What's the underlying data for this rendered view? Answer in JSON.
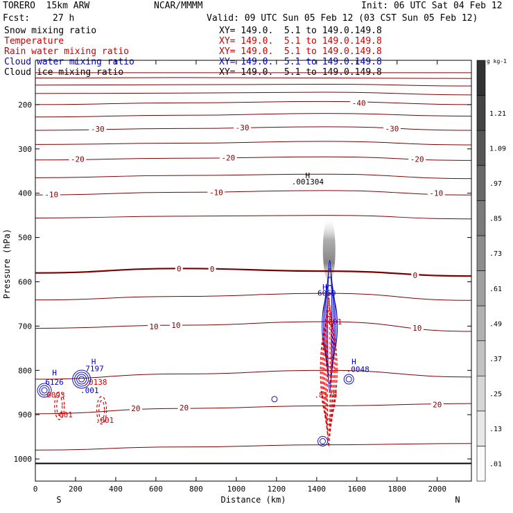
{
  "header": {
    "model": "TORERO  15km ARW",
    "fcst_label": "Fcst:",
    "fcst_value": "27 h",
    "org": "NCAR/MMMM",
    "init": "Init: 06 UTC Sat 04 Feb 12",
    "valid": "Valid: 09 UTC Sun 05 Feb 12 (03 CST Sun 05 Feb 12)"
  },
  "fields": [
    {
      "label": "Snow mixing ratio",
      "xy": "XY= 149.0.  5.1 to 149.0.149.8",
      "color": "#000000"
    },
    {
      "label": "Temperature",
      "xy": "XY= 149.0.  5.1 to 149.0.149.8",
      "color": "#cc0000"
    },
    {
      "label": "Rain water mixing ratio",
      "xy": "XY= 149.0.  5.1 to 149.0.149.8",
      "color": "#cc0000"
    },
    {
      "label": "Cloud water mixing ratio",
      "xy": "XY= 149.0.  5.1 to 149.0.149.8",
      "color": "#0000cc"
    },
    {
      "label": "Cloud ice mixing ratio",
      "xy": "XY= 149.0.  5.1 to 149.0.149.8",
      "color": "#000000"
    }
  ],
  "chart_data": {
    "type": "cross-section contour",
    "xlabel": "Distance (km)",
    "ylabel": "Pressure (hPa)",
    "xlim": [
      0,
      2170
    ],
    "ylim": [
      1050,
      100
    ],
    "x_ticks": [
      0,
      200,
      400,
      600,
      800,
      1000,
      1200,
      1400,
      1600,
      1800,
      2000
    ],
    "y_ticks": [
      200,
      300,
      400,
      500,
      600,
      700,
      800,
      900,
      1000
    ],
    "end_labels": {
      "left": "S",
      "right": "N"
    },
    "isotherms": [
      {
        "T": -60,
        "p": [
          128,
          128,
          128,
          128
        ]
      },
      {
        "T": -55,
        "p": [
          140,
          139,
          140,
          141
        ]
      },
      {
        "T": -50,
        "p": [
          156,
          155,
          154,
          158
        ]
      },
      {
        "T": -45,
        "p": [
          175,
          174,
          172,
          178
        ]
      },
      {
        "T": -40,
        "p": [
          200,
          196,
          193,
          200
        ]
      },
      {
        "T": -35,
        "p": [
          228,
          224,
          220,
          226
        ]
      },
      {
        "T": -30,
        "p": [
          258,
          254,
          250,
          258
        ]
      },
      {
        "T": -25,
        "p": [
          290,
          287,
          283,
          291
        ]
      },
      {
        "T": -20,
        "p": [
          325,
          321,
          318,
          326
        ]
      },
      {
        "T": -15,
        "p": [
          365,
          360,
          357,
          367
        ]
      },
      {
        "T": -10,
        "p": [
          404,
          398,
          394,
          404
        ]
      },
      {
        "T": -5,
        "p": [
          456,
          452,
          450,
          458
        ]
      },
      {
        "T": 0,
        "p": [
          580,
          570,
          576,
          587
        ]
      },
      {
        "T": 5,
        "p": [
          641,
          633,
          626,
          642
        ]
      },
      {
        "T": 10,
        "p": [
          705,
          698,
          690,
          712
        ]
      },
      {
        "T": 15,
        "p": [
          820,
          808,
          800,
          815
        ]
      },
      {
        "T": 20,
        "p": [
          898,
          886,
          880,
          875
        ]
      },
      {
        "T": 25,
        "p": [
          980,
          973,
          968,
          965
        ]
      }
    ],
    "isotherm_labels": [
      {
        "text": "-40",
        "x": 1610,
        "p": 196
      },
      {
        "text": "-30",
        "x": 310,
        "p": 255
      },
      {
        "text": "-30",
        "x": 1030,
        "p": 252
      },
      {
        "text": "-30",
        "x": 1775,
        "p": 254
      },
      {
        "text": "-20",
        "x": 210,
        "p": 323
      },
      {
        "text": "-20",
        "x": 960,
        "p": 320
      },
      {
        "text": "-20",
        "x": 1900,
        "p": 323
      },
      {
        "text": "-10",
        "x": 80,
        "p": 403
      },
      {
        "text": "-10",
        "x": 900,
        "p": 398
      },
      {
        "text": "-10",
        "x": 1995,
        "p": 400
      },
      {
        "text": "0",
        "x": 715,
        "p": 570
      },
      {
        "text": "0",
        "x": 880,
        "p": 571
      },
      {
        "text": "0",
        "x": 1890,
        "p": 585
      },
      {
        "text": "10",
        "x": 590,
        "p": 701
      },
      {
        "text": "10",
        "x": 700,
        "p": 698
      },
      {
        "text": "10",
        "x": 1900,
        "p": 704
      },
      {
        "text": "20",
        "x": 500,
        "p": 886
      },
      {
        "text": "20",
        "x": 740,
        "p": 884
      },
      {
        "text": "20",
        "x": 2000,
        "p": 877
      }
    ],
    "snow_shading": {
      "x": 1462,
      "p_top": 440,
      "p_bottom": 590,
      "legend_ticks": [
        0.01,
        0.13,
        0.25,
        0.37,
        0.49,
        0.61,
        0.73,
        0.85,
        0.97,
        1.09,
        1.21
      ],
      "legend_unit": "g kg-1"
    },
    "cloud_water_contours": [
      {
        "x": 45,
        "p": 845,
        "levels": 3
      },
      {
        "x": 230,
        "p": 820,
        "levels": 4
      },
      {
        "x": 1465,
        "p": 700,
        "levels": 5
      },
      {
        "x": 1560,
        "p": 820,
        "levels": 2
      },
      {
        "x": 1430,
        "p": 960,
        "levels": 2
      },
      {
        "x": 1190,
        "p": 865,
        "levels": 1
      }
    ],
    "rain_contours": [
      {
        "x": 120,
        "p": 880,
        "levels": 2
      },
      {
        "x": 330,
        "p": 890,
        "levels": 2
      },
      {
        "x": 1460,
        "p": 800,
        "levels": 6
      }
    ],
    "annotations": [
      {
        "text": "H",
        "x": 1355,
        "p": 360,
        "color": "#000000"
      },
      {
        "text": ".001304",
        "x": 1355,
        "p": 374,
        "color": "#000000"
      },
      {
        "text": "H",
        "x": 1440,
        "p": 612,
        "color": "#0000cc"
      },
      {
        "text": "6059",
        "x": 1450,
        "p": 625,
        "color": "#0000cc"
      },
      {
        "text": ".001",
        "x": 1480,
        "p": 690,
        "color": "#cc0000"
      },
      {
        "text": "H",
        "x": 1585,
        "p": 780,
        "color": "#0000cc"
      },
      {
        "text": ".0048",
        "x": 1605,
        "p": 797,
        "color": "#0000cc"
      },
      {
        "text": ".8178",
        "x": 1445,
        "p": 855,
        "color": "#cc0000"
      },
      {
        "text": "H",
        "x": 95,
        "p": 805,
        "color": "#0000cc"
      },
      {
        "text": "6126",
        "x": 95,
        "p": 826,
        "color": "#0000cc"
      },
      {
        "text": ".0093",
        "x": 90,
        "p": 855,
        "color": "#cc0000"
      },
      {
        "text": "H",
        "x": 290,
        "p": 780,
        "color": "#0000cc"
      },
      {
        "text": "7197",
        "x": 295,
        "p": 796,
        "color": "#0000cc"
      },
      {
        "text": ".0138",
        "x": 300,
        "p": 826,
        "color": "#cc0000"
      },
      {
        "text": ".001",
        "x": 270,
        "p": 845,
        "color": "#0000cc"
      },
      {
        "text": ".001",
        "x": 140,
        "p": 900,
        "color": "#cc0000"
      },
      {
        "text": ".001",
        "x": 345,
        "p": 912,
        "color": "#cc0000"
      }
    ]
  }
}
